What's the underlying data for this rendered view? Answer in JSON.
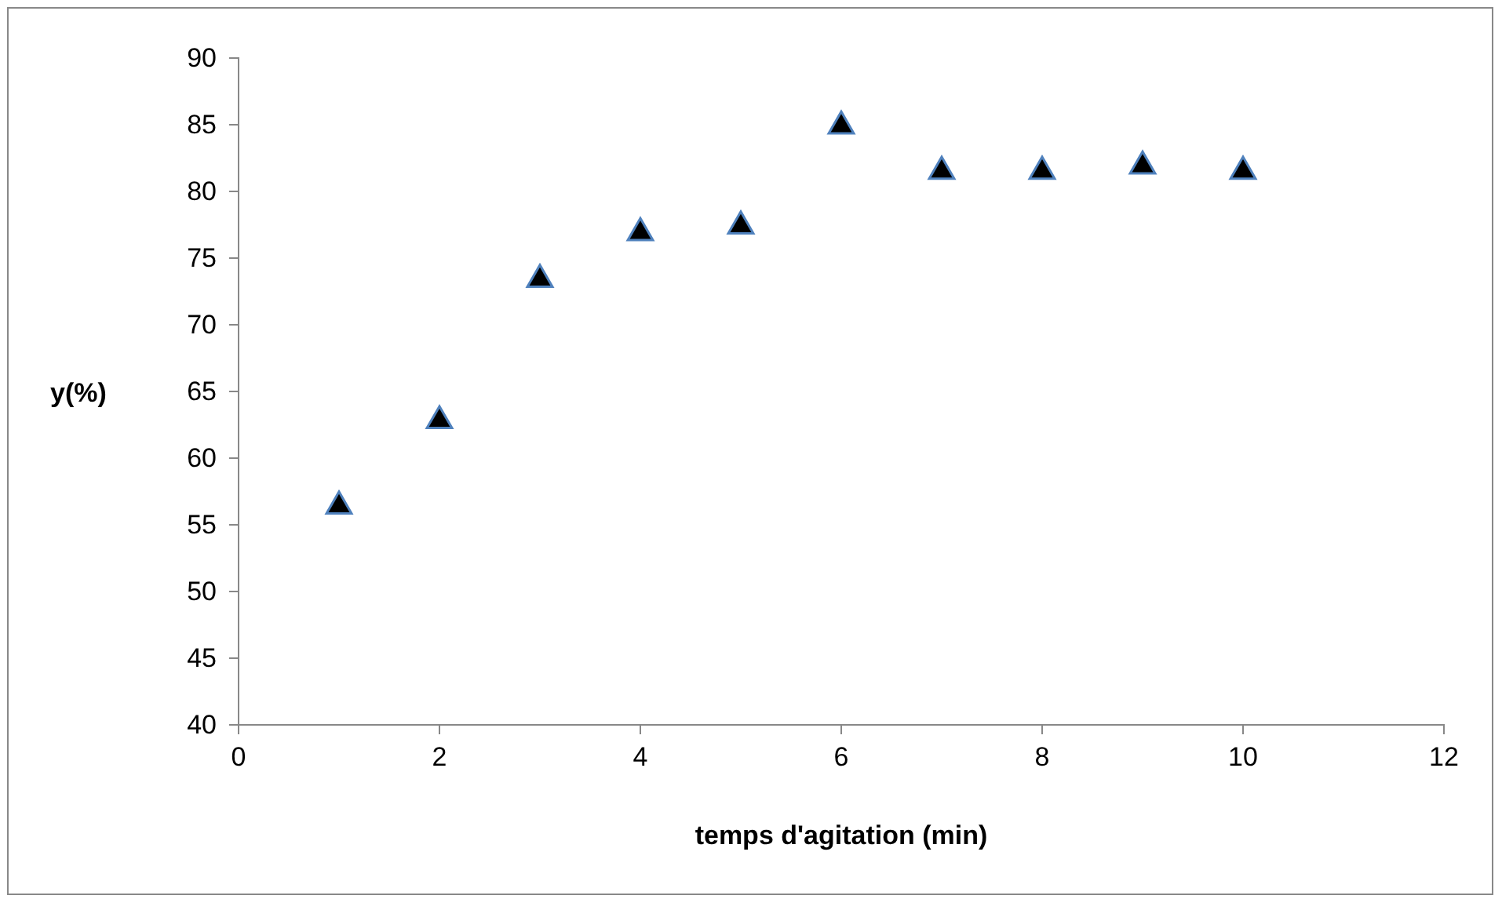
{
  "chart_data": {
    "type": "scatter",
    "xlabel": "temps d'agitation (min)",
    "ylabel": "y(%)",
    "x": [
      1,
      2,
      3,
      4,
      5,
      6,
      7,
      8,
      9,
      10
    ],
    "series": [
      {
        "color": "#000000",
        "values": [
          56.4,
          62.8,
          73.4,
          76.9,
          77.4,
          84.9,
          81.5,
          81.5,
          81.9,
          81.5
        ]
      }
    ],
    "xlim": [
      0,
      12
    ],
    "xticks": [
      0,
      2,
      4,
      6,
      8,
      10,
      12
    ],
    "ylim": [
      40,
      90
    ],
    "yticks": [
      40,
      45,
      50,
      55,
      60,
      65,
      70,
      75,
      80,
      85,
      90
    ],
    "grid": false,
    "marker": "triangle"
  }
}
